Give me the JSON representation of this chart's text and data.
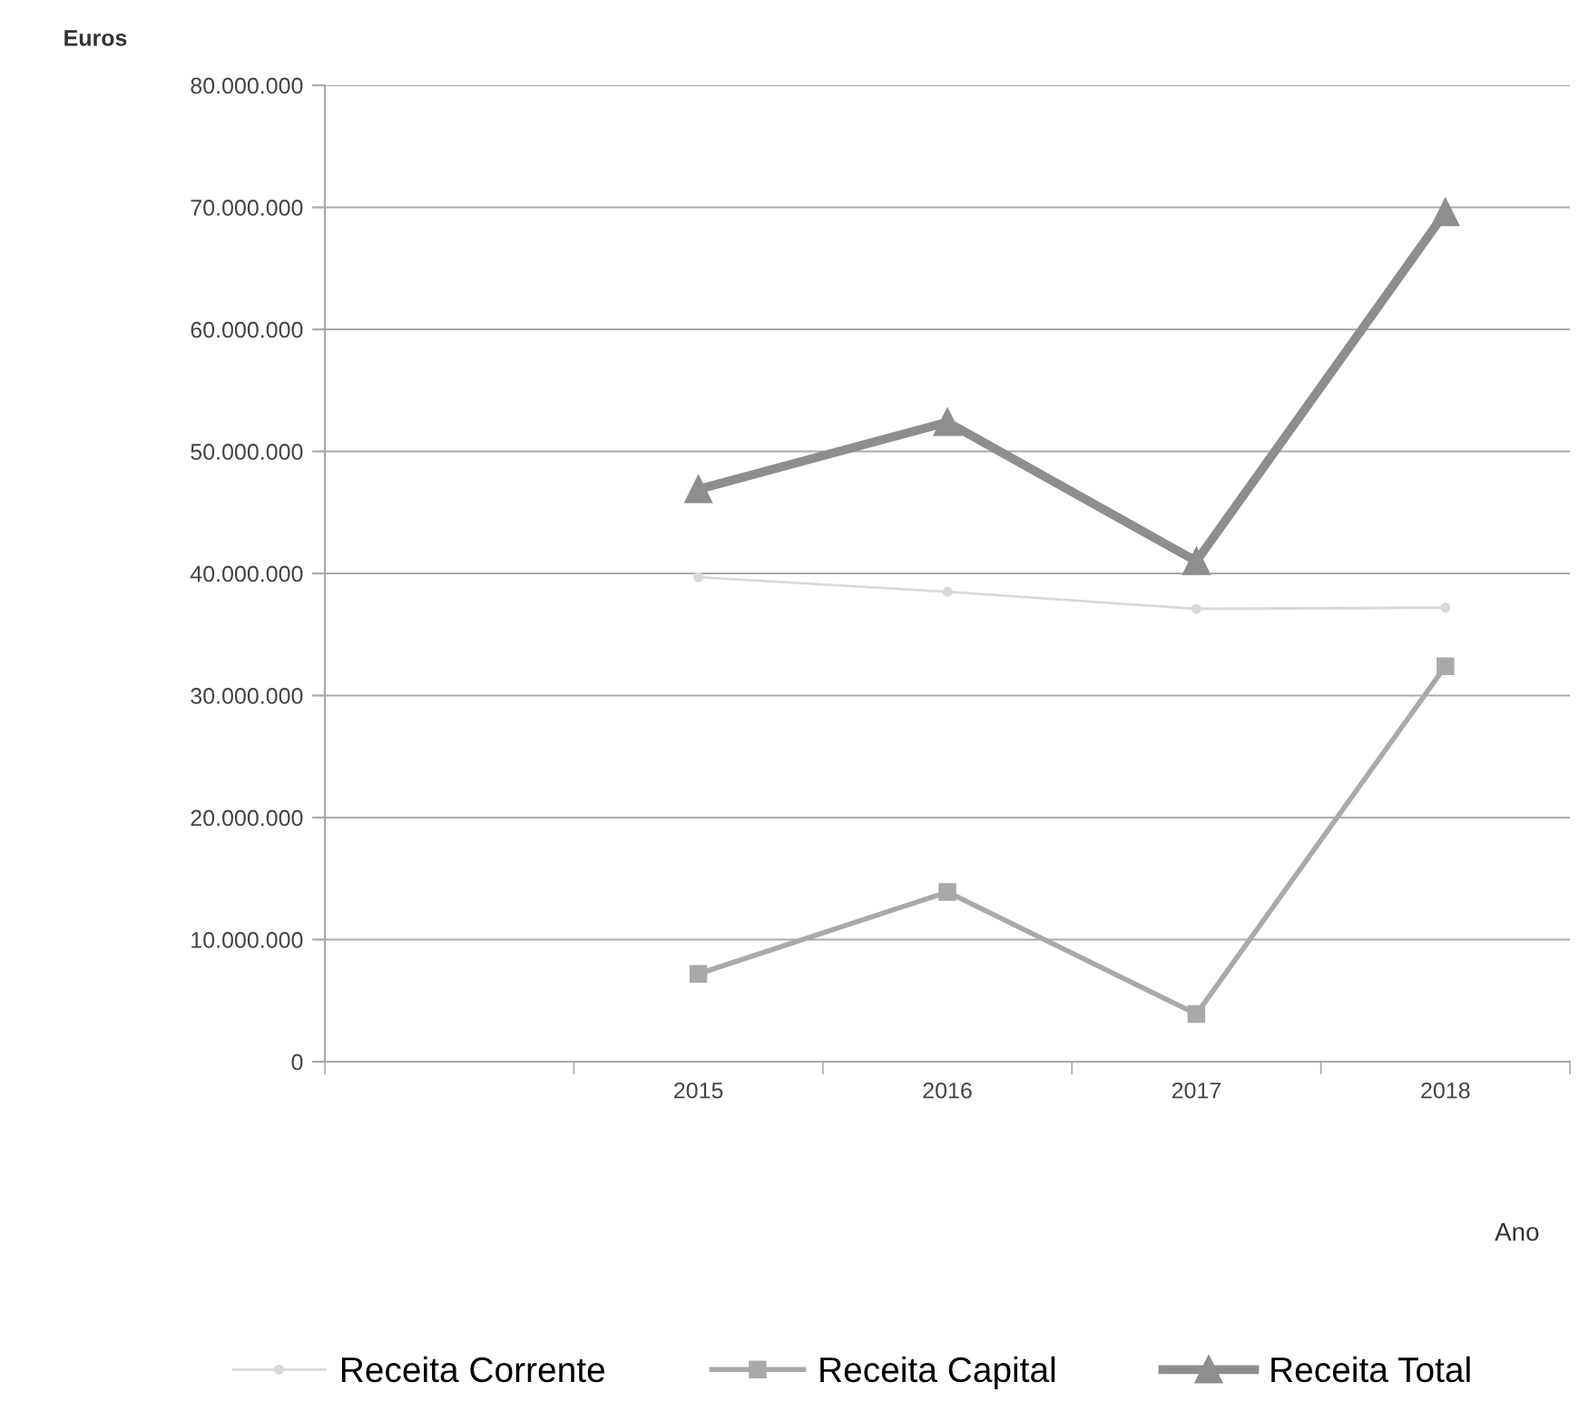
{
  "chart_data": {
    "type": "line",
    "ylabel": "Euros",
    "xlabel": "Ano",
    "categories": [
      null,
      "2015",
      "2016",
      "2017",
      "2018"
    ],
    "series": [
      {
        "name": "Receita Corrente",
        "color": "#d9d9d9",
        "marker": "circle",
        "values": [
          null,
          39700000,
          38500000,
          37100000,
          37200000
        ]
      },
      {
        "name": "Receita Capital",
        "color": "#a9a9a9",
        "marker": "square",
        "values": [
          null,
          7200000,
          13900000,
          3900000,
          32400000
        ]
      },
      {
        "name": "Receita Total",
        "color": "#8e8e8e",
        "marker": "triangle",
        "values": [
          null,
          46900000,
          52400000,
          41000000,
          69600000
        ]
      }
    ],
    "ylim": [
      0,
      80000000
    ],
    "yticks": [
      0,
      {
        "value": 10000000,
        "label": "10.000.000"
      },
      {
        "value": 20000000,
        "label": "20.000.000"
      },
      {
        "value": 30000000,
        "label": "30.000.000"
      },
      {
        "value": 40000000,
        "label": "40.000.000"
      },
      {
        "value": 50000000,
        "label": "50.000.000"
      },
      {
        "value": 60000000,
        "label": "60.000.000"
      },
      {
        "value": 70000000,
        "label": "70.000.000"
      },
      {
        "value": 80000000,
        "label": "80.000.000"
      }
    ],
    "grid": "y",
    "legend": "bottom"
  }
}
